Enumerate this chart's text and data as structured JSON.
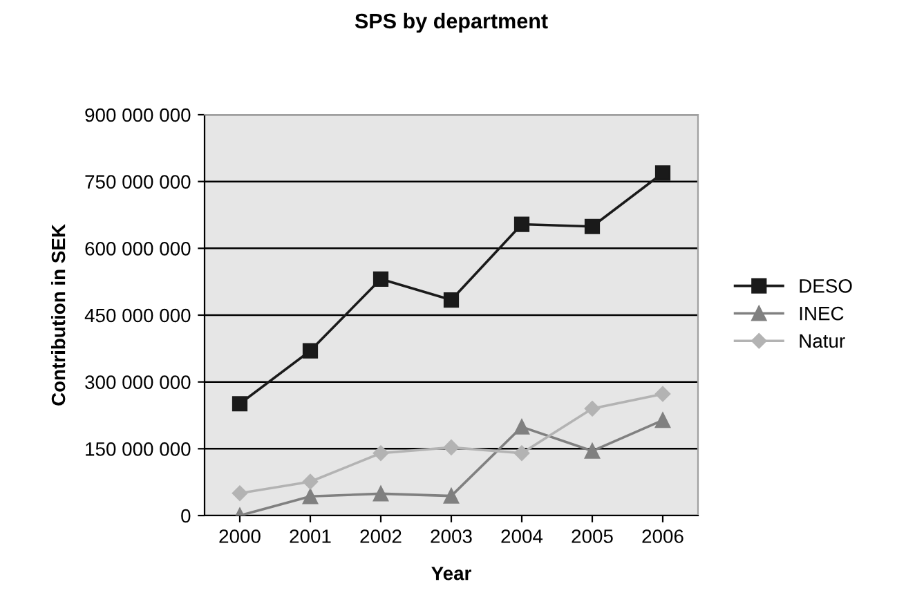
{
  "chart_data": {
    "type": "line",
    "title": "SPS by department",
    "xlabel": "Year",
    "ylabel": "Contribution in SEK",
    "categories": [
      "2000",
      "2001",
      "2002",
      "2003",
      "2004",
      "2005",
      "2006"
    ],
    "series": [
      {
        "name": "DESO",
        "color": "#1a1a1a",
        "marker": "square",
        "values": [
          251000000,
          370000000,
          531000000,
          484000000,
          654000000,
          649000000,
          769000000
        ]
      },
      {
        "name": "INEC",
        "color": "#808080",
        "marker": "triangle",
        "values": [
          0,
          43000000,
          49000000,
          44000000,
          199000000,
          145000000,
          214000000
        ]
      },
      {
        "name": "Natur",
        "color": "#b3b3b3",
        "marker": "diamond",
        "values": [
          50000000,
          76000000,
          140000000,
          153000000,
          140000000,
          240000000,
          273000000
        ]
      }
    ],
    "ylim": [
      0,
      900000000
    ],
    "yticks": [
      {
        "value": 0,
        "label": "0"
      },
      {
        "value": 150000000,
        "label": "150 000 000"
      },
      {
        "value": 300000000,
        "label": "300 000 000"
      },
      {
        "value": 450000000,
        "label": "450 000 000"
      },
      {
        "value": 600000000,
        "label": "600 000 000"
      },
      {
        "value": 750000000,
        "label": "750 000 000"
      },
      {
        "value": 900000000,
        "label": "900 000 000"
      }
    ],
    "grid": "y",
    "legend": "right",
    "line_style": "solid"
  }
}
